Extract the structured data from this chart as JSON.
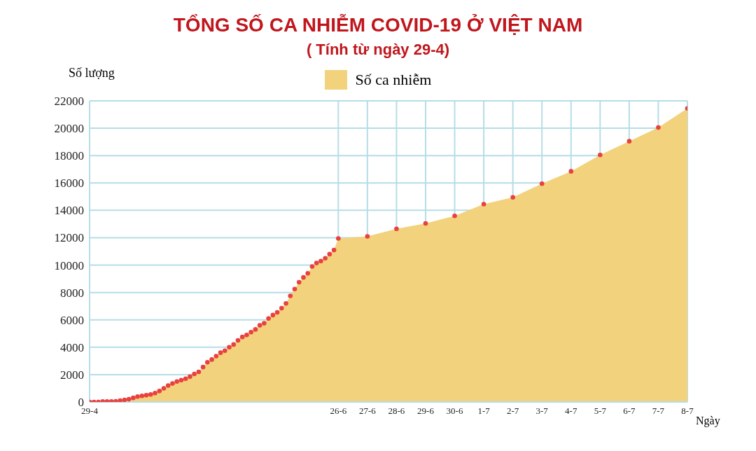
{
  "chart_data": {
    "type": "area",
    "title": "TỔNG SỐ CA NHIỄM COVID-19 Ở VIỆT NAM",
    "subtitle": "( Tính từ ngày 29-4)",
    "xlabel": "Ngày",
    "ylabel": "Số lượng",
    "categories": [
      "29-4",
      null,
      null,
      null,
      null,
      null,
      null,
      null,
      null,
      null,
      null,
      null,
      null,
      null,
      null,
      null,
      null,
      null,
      null,
      null,
      null,
      null,
      null,
      null,
      null,
      null,
      null,
      null,
      null,
      null,
      null,
      null,
      null,
      null,
      null,
      null,
      null,
      null,
      null,
      null,
      null,
      null,
      null,
      null,
      null,
      null,
      null,
      null,
      null,
      null,
      null,
      null,
      null,
      null,
      null,
      null,
      null,
      "26-6",
      "27-6",
      "28-6",
      "29-6",
      "30-6",
      "1-7",
      "2-7",
      "3-7",
      "4-7",
      "5-7",
      "6-7",
      "7-7",
      "8-7"
    ],
    "series": [
      {
        "name": "Số ca nhiễm",
        "color": "#f2d27c",
        "values": [
          0,
          0,
          0,
          30,
          40,
          40,
          50,
          100,
          150,
          200,
          300,
          400,
          450,
          500,
          550,
          650,
          800,
          1000,
          1200,
          1350,
          1500,
          1600,
          1700,
          1850,
          2050,
          2200,
          2550,
          2900,
          3100,
          3350,
          3600,
          3750,
          4000,
          4200,
          4500,
          4750,
          4900,
          5100,
          5300,
          5600,
          5750,
          6100,
          6350,
          6550,
          6850,
          7200,
          7750,
          8250,
          8750,
          9100,
          9400,
          9900,
          10150,
          10300,
          10500,
          10800,
          11100,
          11950,
          12100,
          12650,
          13050,
          13600,
          14450,
          14950,
          15950,
          16850,
          18050,
          19050,
          20050,
          21450
        ]
      },
      {
        "type": "scatter",
        "color": "#e8413f",
        "values": [
          0,
          0,
          0,
          30,
          40,
          40,
          50,
          100,
          150,
          200,
          300,
          400,
          450,
          500,
          550,
          650,
          800,
          1000,
          1200,
          1350,
          1500,
          1600,
          1700,
          1850,
          2050,
          2200,
          2550,
          2900,
          3100,
          3350,
          3600,
          3750,
          4000,
          4200,
          4500,
          4750,
          4900,
          5100,
          5300,
          5600,
          5750,
          6100,
          6350,
          6550,
          6850,
          7200,
          7750,
          8250,
          8750,
          9100,
          9400,
          9900,
          10150,
          10300,
          10500,
          10800,
          11100,
          11950,
          12100,
          12650,
          13050,
          13600,
          14450,
          14950,
          15950,
          16850,
          18050,
          19050,
          20050,
          21450
        ]
      }
    ],
    "ylim": [
      0,
      22000
    ],
    "yticks": [
      0,
      2000,
      4000,
      6000,
      8000,
      10000,
      12000,
      14000,
      16000,
      18000,
      20000,
      22000
    ],
    "grid": true,
    "legend": "top"
  }
}
